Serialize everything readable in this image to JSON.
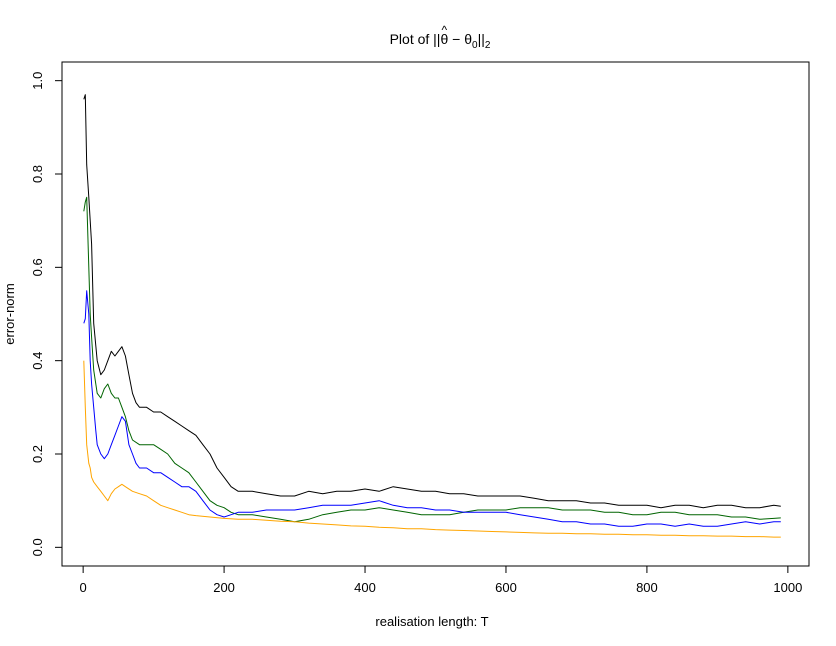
{
  "chart_data": {
    "type": "line",
    "title": "Plot of ||θ̂ − θ0||2",
    "title_parts": {
      "prefix": "Plot of ",
      "norm_open": "||",
      "theta": "θ",
      "hat": "^",
      "minus": " − ",
      "theta0": "θ",
      "sub0": "0",
      "norm_close": "||",
      "sub2": "2"
    },
    "xlabel": "realisation length: T",
    "ylabel": "error-norm",
    "xlim": [
      -30,
      1030
    ],
    "ylim": [
      -0.04,
      1.04
    ],
    "xticks": [
      0,
      200,
      400,
      600,
      800,
      1000
    ],
    "yticks": [
      0.0,
      0.2,
      0.4,
      0.6,
      0.8,
      1.0
    ],
    "xtick_labels": [
      "0",
      "200",
      "400",
      "600",
      "800",
      "1000"
    ],
    "ytick_labels": [
      "0.0",
      "0.2",
      "0.4",
      "0.6",
      "0.8",
      "1.0"
    ],
    "grid": false,
    "legend": "none",
    "series": [
      {
        "color": "#000000",
        "points": [
          [
            1,
            0.96
          ],
          [
            3,
            0.97
          ],
          [
            5,
            0.82
          ],
          [
            8,
            0.75
          ],
          [
            10,
            0.7
          ],
          [
            12,
            0.65
          ],
          [
            15,
            0.48
          ],
          [
            20,
            0.4
          ],
          [
            25,
            0.37
          ],
          [
            30,
            0.38
          ],
          [
            35,
            0.4
          ],
          [
            40,
            0.42
          ],
          [
            45,
            0.41
          ],
          [
            50,
            0.42
          ],
          [
            55,
            0.43
          ],
          [
            60,
            0.41
          ],
          [
            65,
            0.37
          ],
          [
            70,
            0.33
          ],
          [
            75,
            0.31
          ],
          [
            80,
            0.3
          ],
          [
            90,
            0.3
          ],
          [
            100,
            0.29
          ],
          [
            110,
            0.29
          ],
          [
            120,
            0.28
          ],
          [
            130,
            0.27
          ],
          [
            140,
            0.26
          ],
          [
            150,
            0.25
          ],
          [
            160,
            0.24
          ],
          [
            170,
            0.22
          ],
          [
            180,
            0.2
          ],
          [
            190,
            0.17
          ],
          [
            200,
            0.15
          ],
          [
            210,
            0.13
          ],
          [
            220,
            0.12
          ],
          [
            240,
            0.12
          ],
          [
            260,
            0.115
          ],
          [
            280,
            0.11
          ],
          [
            300,
            0.11
          ],
          [
            320,
            0.12
          ],
          [
            340,
            0.115
          ],
          [
            360,
            0.12
          ],
          [
            380,
            0.12
          ],
          [
            400,
            0.125
          ],
          [
            420,
            0.12
          ],
          [
            440,
            0.13
          ],
          [
            460,
            0.125
          ],
          [
            480,
            0.12
          ],
          [
            500,
            0.12
          ],
          [
            520,
            0.115
          ],
          [
            540,
            0.115
          ],
          [
            560,
            0.11
          ],
          [
            580,
            0.11
          ],
          [
            600,
            0.11
          ],
          [
            620,
            0.11
          ],
          [
            640,
            0.105
          ],
          [
            660,
            0.1
          ],
          [
            680,
            0.1
          ],
          [
            700,
            0.1
          ],
          [
            720,
            0.095
          ],
          [
            740,
            0.095
          ],
          [
            760,
            0.09
          ],
          [
            780,
            0.09
          ],
          [
            800,
            0.09
          ],
          [
            820,
            0.085
          ],
          [
            840,
            0.09
          ],
          [
            860,
            0.09
          ],
          [
            880,
            0.085
          ],
          [
            900,
            0.09
          ],
          [
            920,
            0.09
          ],
          [
            940,
            0.085
          ],
          [
            960,
            0.085
          ],
          [
            980,
            0.09
          ],
          [
            990,
            0.088
          ]
        ]
      },
      {
        "color": "#006400",
        "points": [
          [
            1,
            0.72
          ],
          [
            3,
            0.74
          ],
          [
            5,
            0.75
          ],
          [
            8,
            0.6
          ],
          [
            10,
            0.5
          ],
          [
            12,
            0.45
          ],
          [
            15,
            0.38
          ],
          [
            20,
            0.33
          ],
          [
            25,
            0.32
          ],
          [
            30,
            0.34
          ],
          [
            35,
            0.35
          ],
          [
            40,
            0.33
          ],
          [
            45,
            0.32
          ],
          [
            50,
            0.32
          ],
          [
            55,
            0.3
          ],
          [
            60,
            0.28
          ],
          [
            65,
            0.25
          ],
          [
            70,
            0.23
          ],
          [
            80,
            0.22
          ],
          [
            90,
            0.22
          ],
          [
            100,
            0.22
          ],
          [
            110,
            0.21
          ],
          [
            120,
            0.2
          ],
          [
            130,
            0.18
          ],
          [
            140,
            0.17
          ],
          [
            150,
            0.16
          ],
          [
            160,
            0.14
          ],
          [
            170,
            0.12
          ],
          [
            180,
            0.1
          ],
          [
            190,
            0.09
          ],
          [
            200,
            0.085
          ],
          [
            210,
            0.075
          ],
          [
            220,
            0.07
          ],
          [
            240,
            0.07
          ],
          [
            260,
            0.065
          ],
          [
            280,
            0.06
          ],
          [
            300,
            0.055
          ],
          [
            320,
            0.06
          ],
          [
            340,
            0.07
          ],
          [
            360,
            0.075
          ],
          [
            380,
            0.08
          ],
          [
            400,
            0.08
          ],
          [
            420,
            0.085
          ],
          [
            440,
            0.08
          ],
          [
            460,
            0.075
          ],
          [
            480,
            0.07
          ],
          [
            500,
            0.07
          ],
          [
            520,
            0.07
          ],
          [
            540,
            0.075
          ],
          [
            560,
            0.08
          ],
          [
            580,
            0.08
          ],
          [
            600,
            0.08
          ],
          [
            620,
            0.085
          ],
          [
            640,
            0.085
          ],
          [
            660,
            0.085
          ],
          [
            680,
            0.08
          ],
          [
            700,
            0.08
          ],
          [
            720,
            0.08
          ],
          [
            740,
            0.075
          ],
          [
            760,
            0.075
          ],
          [
            780,
            0.07
          ],
          [
            800,
            0.07
          ],
          [
            820,
            0.075
          ],
          [
            840,
            0.075
          ],
          [
            860,
            0.07
          ],
          [
            880,
            0.07
          ],
          [
            900,
            0.07
          ],
          [
            920,
            0.065
          ],
          [
            940,
            0.065
          ],
          [
            960,
            0.06
          ],
          [
            980,
            0.062
          ],
          [
            990,
            0.063
          ]
        ]
      },
      {
        "color": "#0000ff",
        "points": [
          [
            1,
            0.48
          ],
          [
            3,
            0.49
          ],
          [
            5,
            0.55
          ],
          [
            8,
            0.5
          ],
          [
            10,
            0.4
          ],
          [
            12,
            0.35
          ],
          [
            15,
            0.3
          ],
          [
            18,
            0.25
          ],
          [
            20,
            0.22
          ],
          [
            25,
            0.2
          ],
          [
            30,
            0.19
          ],
          [
            35,
            0.2
          ],
          [
            40,
            0.22
          ],
          [
            45,
            0.24
          ],
          [
            50,
            0.26
          ],
          [
            55,
            0.28
          ],
          [
            60,
            0.27
          ],
          [
            65,
            0.22
          ],
          [
            70,
            0.2
          ],
          [
            75,
            0.18
          ],
          [
            80,
            0.17
          ],
          [
            90,
            0.17
          ],
          [
            100,
            0.16
          ],
          [
            110,
            0.16
          ],
          [
            120,
            0.15
          ],
          [
            130,
            0.14
          ],
          [
            140,
            0.13
          ],
          [
            150,
            0.13
          ],
          [
            160,
            0.12
          ],
          [
            170,
            0.1
          ],
          [
            180,
            0.08
          ],
          [
            190,
            0.07
          ],
          [
            200,
            0.065
          ],
          [
            210,
            0.07
          ],
          [
            220,
            0.075
          ],
          [
            240,
            0.075
          ],
          [
            260,
            0.08
          ],
          [
            280,
            0.08
          ],
          [
            300,
            0.08
          ],
          [
            320,
            0.085
          ],
          [
            340,
            0.09
          ],
          [
            360,
            0.09
          ],
          [
            380,
            0.09
          ],
          [
            400,
            0.095
          ],
          [
            420,
            0.1
          ],
          [
            440,
            0.09
          ],
          [
            460,
            0.085
          ],
          [
            480,
            0.085
          ],
          [
            500,
            0.08
          ],
          [
            520,
            0.08
          ],
          [
            540,
            0.075
          ],
          [
            560,
            0.075
          ],
          [
            580,
            0.075
          ],
          [
            600,
            0.075
          ],
          [
            620,
            0.07
          ],
          [
            640,
            0.065
          ],
          [
            660,
            0.06
          ],
          [
            680,
            0.055
          ],
          [
            700,
            0.055
          ],
          [
            720,
            0.05
          ],
          [
            740,
            0.05
          ],
          [
            760,
            0.045
          ],
          [
            780,
            0.045
          ],
          [
            800,
            0.05
          ],
          [
            820,
            0.05
          ],
          [
            840,
            0.045
          ],
          [
            860,
            0.05
          ],
          [
            880,
            0.045
          ],
          [
            900,
            0.045
          ],
          [
            920,
            0.05
          ],
          [
            940,
            0.055
          ],
          [
            960,
            0.05
          ],
          [
            980,
            0.055
          ],
          [
            990,
            0.055
          ]
        ]
      },
      {
        "color": "#ffa500",
        "points": [
          [
            1,
            0.4
          ],
          [
            3,
            0.3
          ],
          [
            5,
            0.22
          ],
          [
            8,
            0.18
          ],
          [
            10,
            0.17
          ],
          [
            12,
            0.15
          ],
          [
            15,
            0.14
          ],
          [
            20,
            0.13
          ],
          [
            25,
            0.12
          ],
          [
            30,
            0.11
          ],
          [
            35,
            0.1
          ],
          [
            40,
            0.115
          ],
          [
            45,
            0.125
          ],
          [
            50,
            0.13
          ],
          [
            55,
            0.135
          ],
          [
            60,
            0.13
          ],
          [
            70,
            0.12
          ],
          [
            80,
            0.115
          ],
          [
            90,
            0.11
          ],
          [
            100,
            0.1
          ],
          [
            110,
            0.09
          ],
          [
            120,
            0.085
          ],
          [
            130,
            0.08
          ],
          [
            140,
            0.075
          ],
          [
            150,
            0.07
          ],
          [
            160,
            0.068
          ],
          [
            180,
            0.065
          ],
          [
            200,
            0.062
          ],
          [
            220,
            0.06
          ],
          [
            240,
            0.06
          ],
          [
            260,
            0.058
          ],
          [
            280,
            0.056
          ],
          [
            300,
            0.055
          ],
          [
            320,
            0.052
          ],
          [
            340,
            0.05
          ],
          [
            360,
            0.048
          ],
          [
            380,
            0.046
          ],
          [
            400,
            0.045
          ],
          [
            420,
            0.043
          ],
          [
            440,
            0.042
          ],
          [
            460,
            0.04
          ],
          [
            480,
            0.04
          ],
          [
            500,
            0.038
          ],
          [
            520,
            0.037
          ],
          [
            540,
            0.036
          ],
          [
            560,
            0.035
          ],
          [
            580,
            0.034
          ],
          [
            600,
            0.033
          ],
          [
            620,
            0.032
          ],
          [
            640,
            0.031
          ],
          [
            660,
            0.03
          ],
          [
            680,
            0.03
          ],
          [
            700,
            0.029
          ],
          [
            720,
            0.029
          ],
          [
            740,
            0.028
          ],
          [
            760,
            0.028
          ],
          [
            780,
            0.027
          ],
          [
            800,
            0.027
          ],
          [
            820,
            0.026
          ],
          [
            840,
            0.026
          ],
          [
            860,
            0.025
          ],
          [
            880,
            0.025
          ],
          [
            900,
            0.024
          ],
          [
            920,
            0.024
          ],
          [
            940,
            0.023
          ],
          [
            960,
            0.023
          ],
          [
            980,
            0.022
          ],
          [
            990,
            0.022
          ]
        ]
      }
    ]
  }
}
